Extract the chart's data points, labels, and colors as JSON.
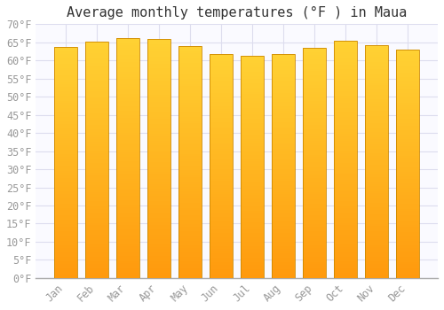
{
  "title": "Average monthly temperatures (°F ) in Maua",
  "months": [
    "Jan",
    "Feb",
    "Mar",
    "Apr",
    "May",
    "Jun",
    "Jul",
    "Aug",
    "Sep",
    "Oct",
    "Nov",
    "Dec"
  ],
  "values": [
    63.7,
    65.3,
    66.2,
    65.8,
    63.9,
    61.7,
    61.2,
    61.7,
    63.5,
    65.5,
    64.2,
    63.1
  ],
  "bar_color": "#FFA500",
  "bar_edge_color": "#CC8800",
  "background_color": "#FFFFFF",
  "plot_bg_color": "#FAFAFF",
  "grid_color": "#DDDDEE",
  "ylim": [
    0,
    70
  ],
  "yticks": [
    0,
    5,
    10,
    15,
    20,
    25,
    30,
    35,
    40,
    45,
    50,
    55,
    60,
    65,
    70
  ],
  "title_fontsize": 11,
  "tick_fontsize": 8.5,
  "tick_color": "#999999",
  "bar_width": 0.75,
  "figsize": [
    5.0,
    3.5
  ],
  "dpi": 100
}
